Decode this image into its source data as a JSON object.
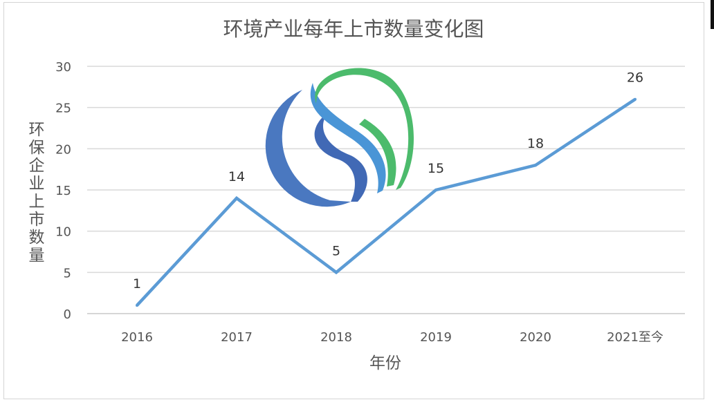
{
  "chart_data": {
    "type": "line",
    "title": "环境产业每年上市数量变化图",
    "xlabel": "年份",
    "ylabel": "环保企业上市数量",
    "categories": [
      "2016",
      "2017",
      "2018",
      "2019",
      "2020",
      "2021至今"
    ],
    "values": [
      1,
      14,
      5,
      15,
      18,
      26
    ],
    "data_labels": [
      "1",
      "14",
      "5",
      "15",
      "18",
      "26"
    ],
    "ylim": [
      0,
      30
    ],
    "yticks": [
      "0",
      "5",
      "10",
      "15",
      "20",
      "25",
      "30"
    ],
    "grid": true,
    "legend": "none",
    "line_color": "#5b9bd5",
    "watermark": "S-shaped circular logo (blue and green)"
  }
}
